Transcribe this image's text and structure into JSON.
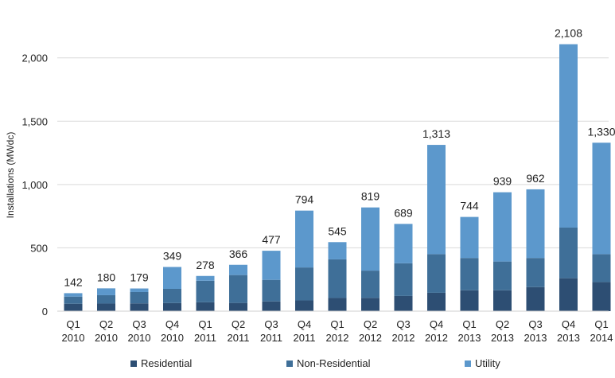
{
  "chart_data": {
    "type": "bar",
    "stacked": true,
    "ylabel": "Installations (MWdc)",
    "xlabel": "",
    "ylim": [
      0,
      2300
    ],
    "yticks": [
      0,
      500,
      1000,
      1500,
      2000
    ],
    "ytick_labels": [
      "0",
      "500",
      "1,000",
      "1,500",
      "2,000"
    ],
    "categories": [
      [
        "Q1",
        "2010"
      ],
      [
        "Q2",
        "2010"
      ],
      [
        "Q3",
        "2010"
      ],
      [
        "Q4",
        "2010"
      ],
      [
        "Q1",
        "2011"
      ],
      [
        "Q2",
        "2011"
      ],
      [
        "Q3",
        "2011"
      ],
      [
        "Q4",
        "2011"
      ],
      [
        "Q1",
        "2012"
      ],
      [
        "Q2",
        "2012"
      ],
      [
        "Q3",
        "2012"
      ],
      [
        "Q4",
        "2012"
      ],
      [
        "Q1",
        "2013"
      ],
      [
        "Q2",
        "2013"
      ],
      [
        "Q3",
        "2013"
      ],
      [
        "Q4",
        "2013"
      ],
      [
        "Q1",
        "2014"
      ]
    ],
    "series": [
      {
        "name": "Residential",
        "color": "#2d4e73",
        "values": [
          58,
          60,
          61,
          64,
          70,
          65,
          77,
          85,
          104,
          105,
          120,
          145,
          165,
          165,
          190,
          260,
          230
        ]
      },
      {
        "name": "Non-Residential",
        "color": "#3f6f98",
        "values": [
          57,
          66,
          90,
          112,
          170,
          220,
          170,
          260,
          305,
          215,
          258,
          305,
          255,
          227,
          230,
          400,
          220
        ]
      },
      {
        "name": "Utility",
        "color": "#5c98cc",
        "values": [
          27,
          54,
          28,
          173,
          38,
          81,
          230,
          449,
          136,
          499,
          311,
          863,
          324,
          547,
          542,
          1448,
          880
        ]
      }
    ],
    "totals": [
      142,
      180,
      179,
      349,
      278,
      366,
      477,
      794,
      545,
      819,
      689,
      1313,
      744,
      939,
      962,
      2108,
      1330
    ],
    "total_labels": [
      "142",
      "180",
      "179",
      "349",
      "278",
      "366",
      "477",
      "794",
      "545",
      "819",
      "689",
      "1,313",
      "744",
      "939",
      "962",
      "2,108",
      "1,330"
    ],
    "grid": "horizontal",
    "legend_position": "bottom"
  }
}
